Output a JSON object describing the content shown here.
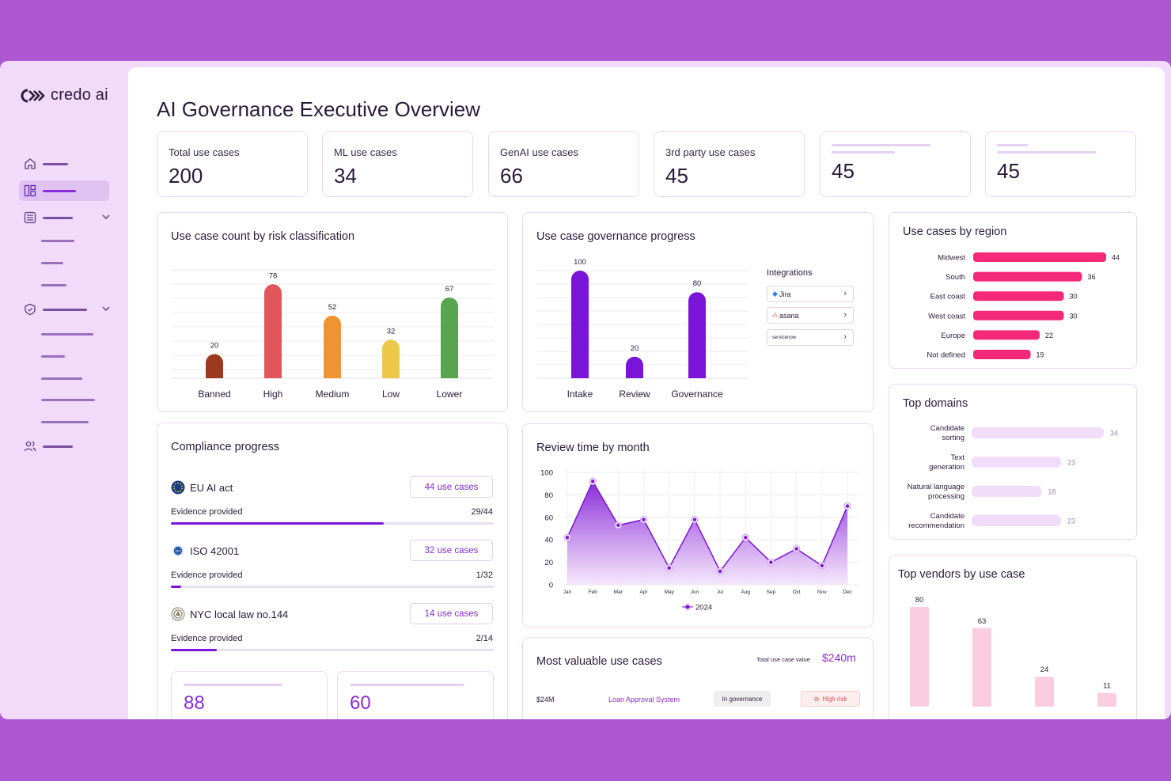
{
  "brand": {
    "name": "credo ai"
  },
  "page": {
    "title": "AI Governance Executive Overview"
  },
  "stats": [
    {
      "label": "Total use cases",
      "value": "200"
    },
    {
      "label": "ML use cases",
      "value": "34"
    },
    {
      "label": "GenAI use cases",
      "value": "66"
    },
    {
      "label": "3rd party use cases",
      "value": "45"
    },
    {
      "label": "",
      "value": "45"
    },
    {
      "label": "",
      "value": "45"
    }
  ],
  "risk_chart": {
    "title": "Use case count by risk classification",
    "chart_data": {
      "type": "bar",
      "categories": [
        "Banned",
        "High",
        "Medium",
        "Low",
        "Lower"
      ],
      "values": [
        20,
        78,
        52,
        32,
        67
      ],
      "colors": [
        "#9b3a1e",
        "#e0565a",
        "#f09332",
        "#ecc94a",
        "#57a64f"
      ],
      "ylim": [
        0,
        90
      ]
    }
  },
  "governance_chart": {
    "title": "Use case governance progress",
    "chart_data": {
      "type": "bar",
      "categories": [
        "Intake",
        "Review",
        "Governance"
      ],
      "values": [
        100,
        20,
        80
      ],
      "color": "#7a14d8",
      "ylim": [
        0,
        100
      ]
    },
    "integrations_title": "Integrations",
    "integrations": [
      "Jira",
      "asana",
      "servicenow"
    ]
  },
  "region_chart": {
    "title": "Use cases by region",
    "chart_data": {
      "type": "bar",
      "orientation": "horizontal",
      "categories": [
        "Midwest",
        "South",
        "East coast",
        "West coast",
        "Europe",
        "Not defined"
      ],
      "values": [
        44,
        36,
        30,
        30,
        22,
        19
      ],
      "color": "#f5297a"
    }
  },
  "domains_chart": {
    "title": "Top domains",
    "chart_data": {
      "type": "bar",
      "orientation": "horizontal",
      "categories": [
        [
          "Candidate",
          "sorting"
        ],
        [
          "Text",
          "generation"
        ],
        [
          "Natural language",
          "processing"
        ],
        [
          "Candidate",
          "recommendation"
        ]
      ],
      "values": [
        34,
        23,
        18,
        23
      ],
      "color": "#f1dcfa"
    }
  },
  "compliance": {
    "title": "Compliance progress",
    "items": [
      {
        "name": "EU AI act",
        "badge": "44 use cases",
        "sub": "Evidence provided",
        "frac": "29/44",
        "progress": 0.659
      },
      {
        "name": "ISO 42001",
        "badge": "32 use cases",
        "sub": "Evidence provided",
        "frac": "1/32",
        "progress": 0.031
      },
      {
        "name": "NYC local law no.144",
        "badge": "14 use cases",
        "sub": "Evidence provided",
        "frac": "2/14",
        "progress": 0.143
      }
    ],
    "mini": [
      "88",
      "60"
    ]
  },
  "review_chart": {
    "title": "Review time by month",
    "chart_data": {
      "type": "area",
      "x": [
        "Jan",
        "Feb",
        "Mar",
        "Apr",
        "May",
        "Jun",
        "Jul",
        "Aug",
        "Sep",
        "Oct",
        "Nov",
        "Dec"
      ],
      "series": [
        {
          "name": "2024",
          "values": [
            42,
            92,
            53,
            58,
            15,
            58,
            12,
            42,
            20,
            32,
            17,
            70
          ]
        }
      ],
      "yticks": [
        0,
        20,
        40,
        60,
        80,
        100
      ],
      "ylim": [
        0,
        100
      ],
      "color": "#8a2bd8"
    }
  },
  "valuable": {
    "title": "Most valuable use cases",
    "total_label": "Total use case value",
    "total_value": "$240m",
    "rows": [
      {
        "value": "$24M",
        "name": "Loan Approval System",
        "status": "In governance",
        "risk": "High risk"
      }
    ]
  },
  "vendors_chart": {
    "title": "Top vendors by use case",
    "chart_data": {
      "type": "bar",
      "values": [
        80,
        63,
        24,
        11
      ],
      "color": "#fbcde0",
      "ylim": [
        0,
        90
      ]
    }
  }
}
